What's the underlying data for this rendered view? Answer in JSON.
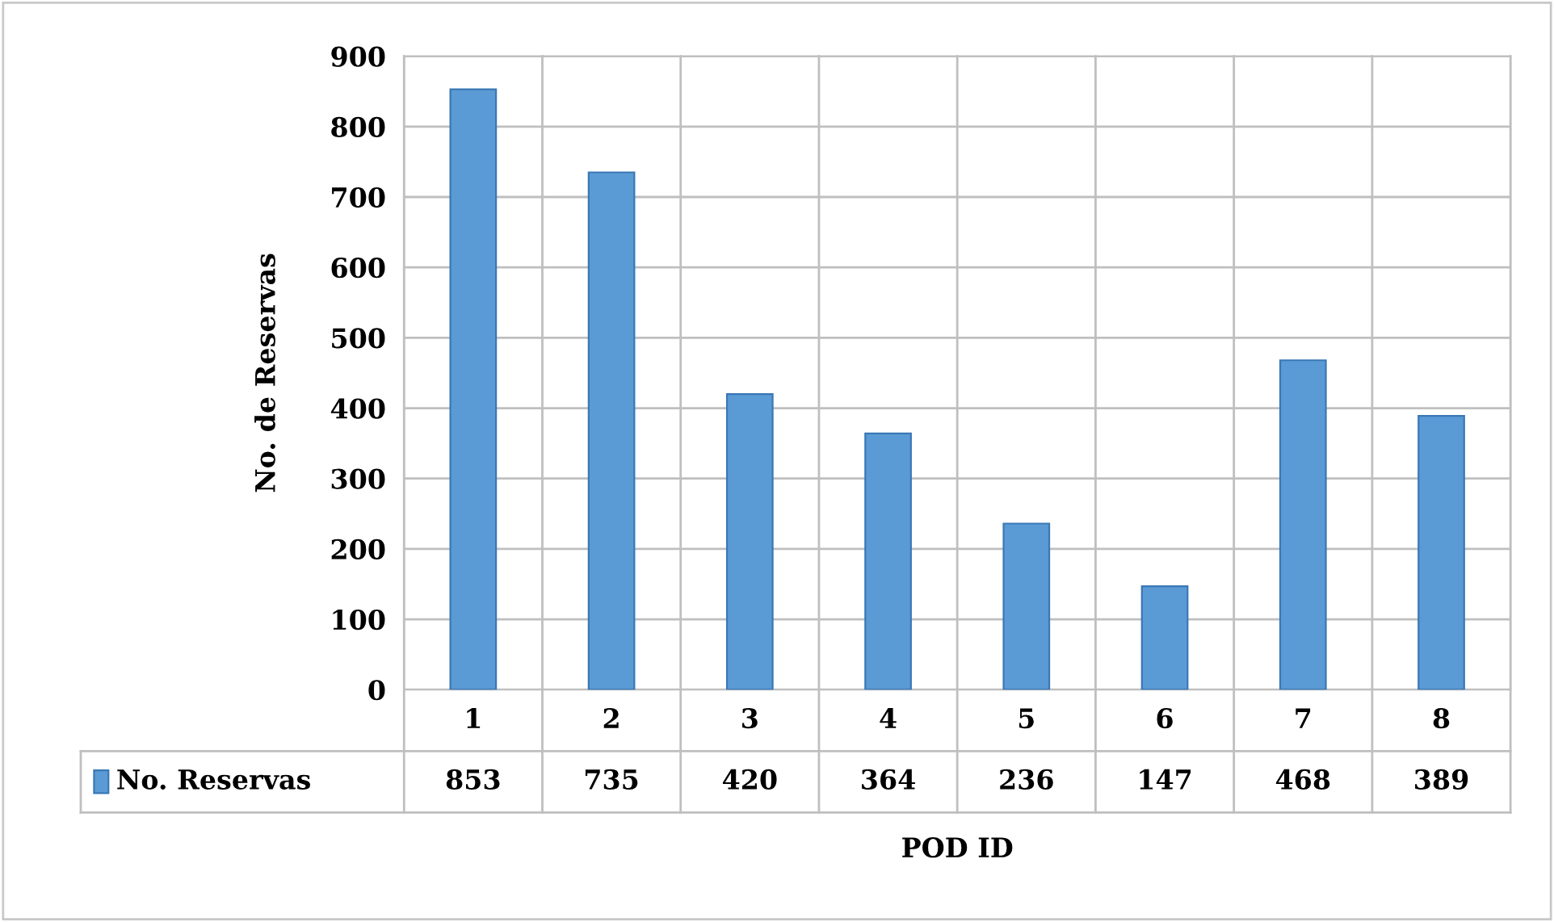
{
  "chart_data": {
    "type": "bar",
    "xlabel": "POD ID",
    "ylabel": "No. de Reservas",
    "categories": [
      "1",
      "2",
      "3",
      "4",
      "5",
      "6",
      "7",
      "8"
    ],
    "series": [
      {
        "name": "No. Reservas",
        "color": "#5b9bd5",
        "values": [
          853,
          735,
          420,
          364,
          236,
          147,
          468,
          389
        ]
      }
    ],
    "ylim": [
      0,
      900
    ],
    "yticks": [
      0,
      100,
      200,
      300,
      400,
      500,
      600,
      700,
      800,
      900
    ],
    "grid": true,
    "data_labels": true,
    "legend": "bottom"
  }
}
